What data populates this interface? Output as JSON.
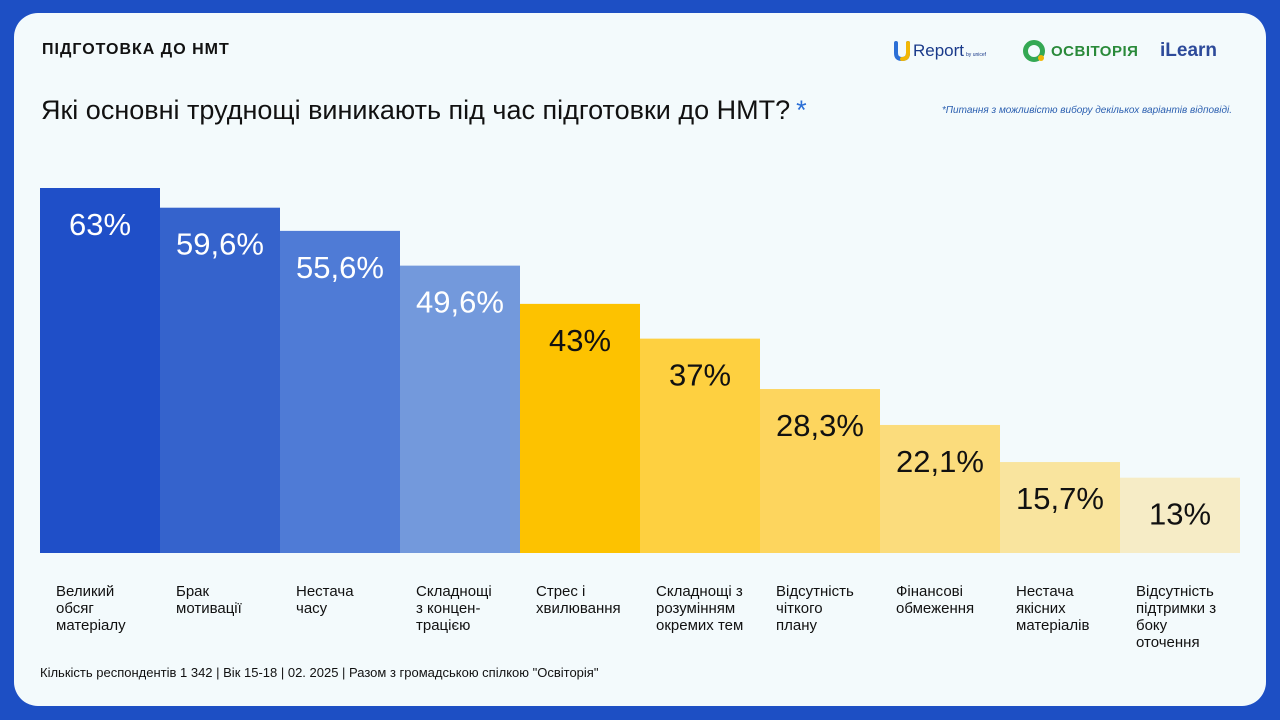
{
  "header": {
    "label": "ПІДГОТОВКА ДО НМТ"
  },
  "logos": {
    "ureport": {
      "main": "Report",
      "sub": "by unicef"
    },
    "osvitoria": "ОСВІТОРІЯ",
    "ilearn": "iLearn"
  },
  "title": {
    "text": "Які основні труднощі виникають під час підготовки до НМТ?",
    "asterisk": "*"
  },
  "note": "*Питання з можливістю вибору декількох варіантів відповіді.",
  "footer": "Кількість респондентів 1 342 | Вік 15-18 | 02. 2025 | Разом з громадською спілкою \"Освіторія\"",
  "chart_data": {
    "type": "bar",
    "title": "Які основні труднощі виникають під час підготовки до НМТ?",
    "xlabel": "",
    "ylabel": "",
    "ylim": [
      0,
      70
    ],
    "unit": "%",
    "grid": false,
    "categories": [
      "Великий обсяг матеріалу",
      "Брак мотивації",
      "Нестача часу",
      "Складнощі з концен-трацією",
      "Стрес і хвилювання",
      "Складнощі з розумінням окремих тем",
      "Відсутність чіткого плану",
      "Фінансові обмеження",
      "Нестача якісних матеріалів",
      "Відсутність підтримки з боку оточення"
    ],
    "category_lines": [
      [
        "Великий",
        "обсяг",
        "матеріалу"
      ],
      [
        "Брак",
        "мотивації"
      ],
      [
        "Нестача",
        "часу"
      ],
      [
        "Складнощі",
        "з концен-",
        "трацією"
      ],
      [
        "Стрес і",
        "хвилювання"
      ],
      [
        "Складнощі з",
        "розумінням",
        "окремих тем"
      ],
      [
        "Відсутність",
        "чіткого",
        "плану"
      ],
      [
        "Фінансові",
        "обмеження"
      ],
      [
        "Нестача",
        "якісних",
        "матеріалів"
      ],
      [
        "Відсутність",
        "підтримки з",
        "боку",
        "оточення"
      ]
    ],
    "values": [
      63,
      59.6,
      55.6,
      49.6,
      43,
      37,
      28.3,
      22.1,
      15.7,
      13
    ],
    "labels": [
      "63%",
      "59,6%",
      "55,6%",
      "49,6%",
      "43%",
      "37%",
      "28,3%",
      "22,1%",
      "15,7%",
      "13%"
    ],
    "colors": [
      "#1f4fc8",
      "#3563cc",
      "#4f7bd6",
      "#7399dc",
      "#fdc200",
      "#fed040",
      "#fdd55e",
      "#fbdc7c",
      "#f9e49e",
      "#f6ecc6"
    ],
    "label_colors": [
      "#ffffff",
      "#ffffff",
      "#ffffff",
      "#ffffff",
      "#111111",
      "#111111",
      "#111111",
      "#111111",
      "#111111",
      "#111111"
    ]
  }
}
